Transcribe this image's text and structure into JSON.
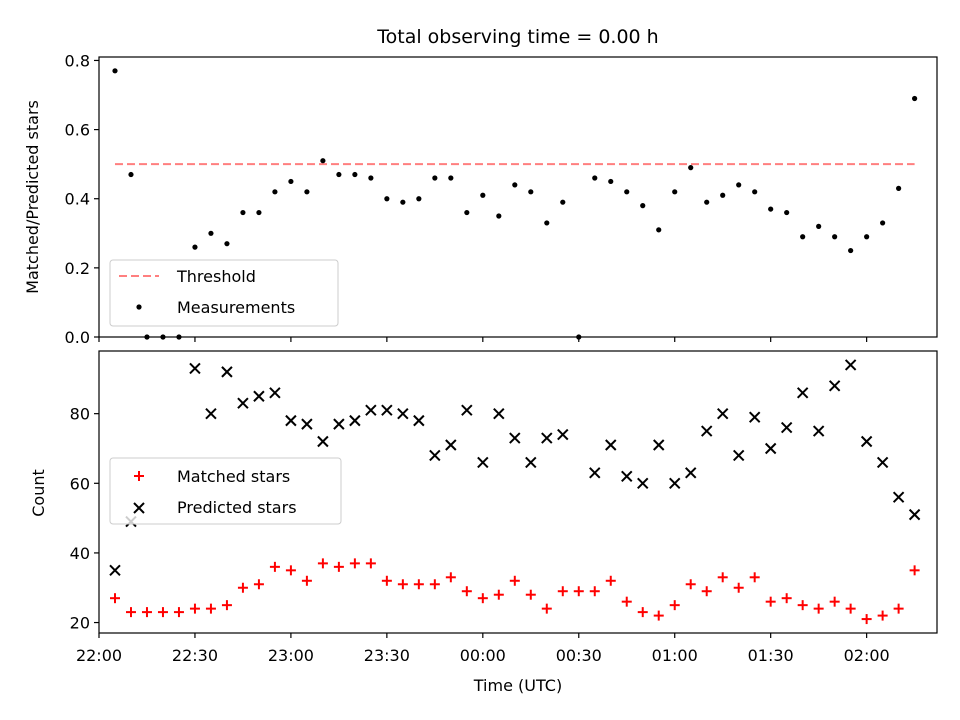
{
  "title": "Total observing time = 0.00 h",
  "chart_data": [
    {
      "type": "scatter",
      "ylabel": "Matched/Predicted stars",
      "xlim": [
        "22:00",
        "02:22"
      ],
      "ylim": [
        0,
        0.81
      ],
      "y_ticks": [
        "0.0",
        "0.2",
        "0.4",
        "0.6",
        "0.8"
      ],
      "threshold": {
        "name": "Threshold",
        "value": 0.5,
        "x_range": [
          "22:05",
          "02:15"
        ],
        "color": "#ff7f7f",
        "style": "dashed"
      },
      "series": [
        {
          "name": "Measurements",
          "color": "#000000",
          "marker": "dot",
          "x": [
            "22:05",
            "22:10",
            "22:15",
            "22:20",
            "22:25",
            "22:30",
            "22:35",
            "22:40",
            "22:45",
            "22:50",
            "22:55",
            "23:00",
            "23:05",
            "23:10",
            "23:15",
            "23:20",
            "23:25",
            "23:30",
            "23:35",
            "23:40",
            "23:45",
            "23:50",
            "23:55",
            "00:00",
            "00:05",
            "00:10",
            "00:15",
            "00:20",
            "00:25",
            "00:30",
            "00:35",
            "00:40",
            "00:45",
            "00:50",
            "00:55",
            "01:00",
            "01:05",
            "01:10",
            "01:15",
            "01:20",
            "01:25",
            "01:30",
            "01:35",
            "01:40",
            "01:45",
            "01:50",
            "01:55",
            "02:00",
            "02:05",
            "02:10",
            "02:15"
          ],
          "y": [
            0.77,
            0.47,
            0.0,
            0.0,
            0.0,
            0.26,
            0.3,
            0.27,
            0.36,
            0.36,
            0.42,
            0.45,
            0.42,
            0.51,
            0.47,
            0.47,
            0.46,
            0.4,
            0.39,
            0.4,
            0.46,
            0.46,
            0.36,
            0.41,
            0.35,
            0.44,
            0.42,
            0.33,
            0.39,
            0.0,
            0.46,
            0.45,
            0.42,
            0.38,
            0.31,
            0.42,
            0.49,
            0.39,
            0.41,
            0.44,
            0.42,
            0.37,
            0.36,
            0.29,
            0.32,
            0.29,
            0.25,
            0.29,
            0.33,
            0.43,
            0.69
          ]
        }
      ]
    },
    {
      "type": "scatter",
      "ylabel": "Count",
      "xlabel": "Time (UTC)",
      "xlim": [
        "22:00",
        "02:22"
      ],
      "ylim": [
        17,
        98
      ],
      "x_ticks": [
        "22:00",
        "22:30",
        "23:00",
        "23:30",
        "00:00",
        "00:30",
        "01:00",
        "01:30",
        "02:00"
      ],
      "y_ticks": [
        "20",
        "40",
        "60",
        "80"
      ],
      "series": [
        {
          "name": "Matched stars",
          "color": "#ff0000",
          "marker": "plus",
          "x": [
            "22:05",
            "22:10",
            "22:15",
            "22:20",
            "22:25",
            "22:30",
            "22:35",
            "22:40",
            "22:45",
            "22:50",
            "22:55",
            "23:00",
            "23:05",
            "23:10",
            "23:15",
            "23:20",
            "23:25",
            "23:30",
            "23:35",
            "23:40",
            "23:45",
            "23:50",
            "23:55",
            "00:00",
            "00:05",
            "00:10",
            "00:15",
            "00:20",
            "00:25",
            "00:30",
            "00:35",
            "00:40",
            "00:45",
            "00:50",
            "00:55",
            "01:00",
            "01:05",
            "01:10",
            "01:15",
            "01:20",
            "01:25",
            "01:30",
            "01:35",
            "01:40",
            "01:45",
            "01:50",
            "01:55",
            "02:00",
            "02:05",
            "02:10",
            "02:15"
          ],
          "y": [
            27,
            23,
            23,
            23,
            23,
            24,
            24,
            25,
            30,
            31,
            36,
            35,
            32,
            37,
            36,
            37,
            37,
            32,
            31,
            31,
            31,
            33,
            29,
            27,
            28,
            32,
            28,
            24,
            29,
            29,
            29,
            32,
            26,
            23,
            22,
            25,
            31,
            29,
            33,
            30,
            33,
            26,
            27,
            25,
            24,
            26,
            24,
            21,
            22,
            24,
            35
          ]
        },
        {
          "name": "Predicted stars",
          "color": "#000000",
          "marker": "x",
          "x": [
            "22:05",
            "22:10",
            "22:30",
            "22:35",
            "22:40",
            "22:45",
            "22:50",
            "22:55",
            "23:00",
            "23:05",
            "23:10",
            "23:15",
            "23:20",
            "23:25",
            "23:30",
            "23:35",
            "23:40",
            "23:45",
            "23:50",
            "23:55",
            "00:00",
            "00:05",
            "00:10",
            "00:15",
            "00:20",
            "00:25",
            "00:35",
            "00:40",
            "00:45",
            "00:50",
            "00:55",
            "01:00",
            "01:05",
            "01:10",
            "01:15",
            "01:20",
            "01:25",
            "01:30",
            "01:35",
            "01:40",
            "01:45",
            "01:50",
            "01:55",
            "02:00",
            "02:05",
            "02:10",
            "02:15"
          ],
          "y": [
            35,
            49,
            93,
            80,
            92,
            83,
            85,
            86,
            78,
            77,
            72,
            77,
            78,
            81,
            81,
            80,
            78,
            68,
            71,
            81,
            66,
            80,
            73,
            66,
            73,
            74,
            63,
            71,
            62,
            60,
            71,
            60,
            63,
            75,
            80,
            68,
            79,
            70,
            76,
            86,
            75,
            88,
            94,
            72,
            66,
            56,
            51
          ]
        }
      ]
    }
  ]
}
